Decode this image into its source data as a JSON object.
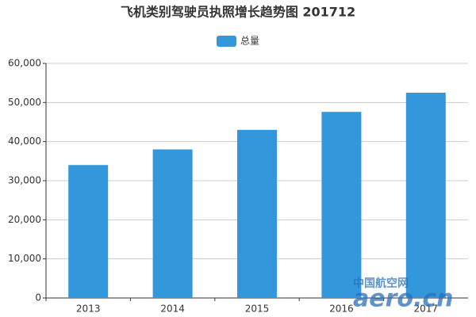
{
  "chart_data": {
    "type": "bar",
    "title": "飞机类别驾驶员执照增长趋势图 201712",
    "categories": [
      "2013",
      "2014",
      "2015",
      "2016",
      "2017"
    ],
    "series": [
      {
        "name": "总量",
        "color": "#3398db",
        "values": [
          34000,
          38000,
          43000,
          47600,
          52500
        ]
      }
    ],
    "ylim": [
      0,
      60000
    ],
    "yticks": [
      0,
      {
        "value": 10000,
        "label": "10,000"
      },
      {
        "value": 20000,
        "label": "20,000"
      },
      {
        "value": 30000,
        "label": "30,000"
      },
      {
        "value": 40000,
        "label": "40,000"
      },
      {
        "value": 50000,
        "label": "50,000"
      },
      {
        "value": 60000,
        "label": "60,000"
      }
    ],
    "grid": true,
    "legend": "top",
    "watermark": [
      "中国航空网",
      "aero.cn"
    ]
  }
}
